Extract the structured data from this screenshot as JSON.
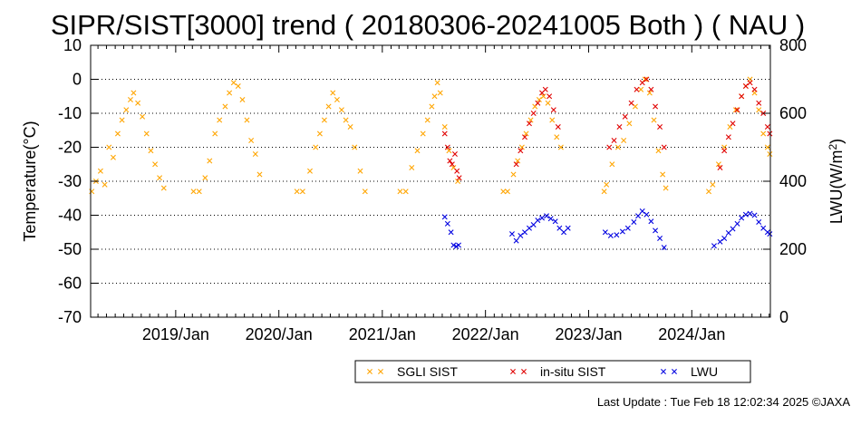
{
  "chart_data": {
    "type": "scatter",
    "title": "SIPR/SIST[3000] trend ( 20180306-20241005 Both ) ( NAU )",
    "ylabel": "Temperature(°C)",
    "y2label_main": "LWU(W/m",
    "y2label_sup": "2",
    "y2label_end": ")",
    "ylim": [
      -70,
      10
    ],
    "y2lim": [
      0,
      800
    ],
    "yticks": [
      10,
      0,
      -10,
      -20,
      -30,
      -40,
      -50,
      -60,
      -70
    ],
    "y2ticks": [
      800,
      600,
      400,
      200,
      0
    ],
    "xlim": [
      "2018-03-06",
      "2024-10-05"
    ],
    "xticklabels": [
      "2019/Jan",
      "2020/Jan",
      "2021/Jan",
      "2022/Jan",
      "2023/Jan",
      "2024/Jan"
    ],
    "grid": "horizontal dotted",
    "legend_position": "bottom",
    "series": [
      {
        "name": "SGLI SIST",
        "color": "#ffa500",
        "marker": "x",
        "axis": "left",
        "points": [
          [
            "2018-03-10",
            -33
          ],
          [
            "2018-03-25",
            -30
          ],
          [
            "2018-04-10",
            -27
          ],
          [
            "2018-04-25",
            -31
          ],
          [
            "2018-05-10",
            -20
          ],
          [
            "2018-05-25",
            -23
          ],
          [
            "2018-06-10",
            -16
          ],
          [
            "2018-06-25",
            -12
          ],
          [
            "2018-07-10",
            -9
          ],
          [
            "2018-07-25",
            -6
          ],
          [
            "2018-08-05",
            -4
          ],
          [
            "2018-08-20",
            -7
          ],
          [
            "2018-09-05",
            -11
          ],
          [
            "2018-09-20",
            -16
          ],
          [
            "2018-10-05",
            -21
          ],
          [
            "2018-10-20",
            -25
          ],
          [
            "2018-11-05",
            -29
          ],
          [
            "2018-11-20",
            -32
          ],
          [
            "2019-03-05",
            -33
          ],
          [
            "2019-03-25",
            -33
          ],
          [
            "2019-04-15",
            -29
          ],
          [
            "2019-05-01",
            -24
          ],
          [
            "2019-05-20",
            -16
          ],
          [
            "2019-06-05",
            -12
          ],
          [
            "2019-06-25",
            -8
          ],
          [
            "2019-07-10",
            -4
          ],
          [
            "2019-07-25",
            -1
          ],
          [
            "2019-08-10",
            -2
          ],
          [
            "2019-08-25",
            -6
          ],
          [
            "2019-09-10",
            -12
          ],
          [
            "2019-09-25",
            -18
          ],
          [
            "2019-10-10",
            -22
          ],
          [
            "2019-10-25",
            -28
          ],
          [
            "2020-03-05",
            -33
          ],
          [
            "2020-03-25",
            -33
          ],
          [
            "2020-04-20",
            -27
          ],
          [
            "2020-05-10",
            -20
          ],
          [
            "2020-05-25",
            -16
          ],
          [
            "2020-06-10",
            -12
          ],
          [
            "2020-06-25",
            -8
          ],
          [
            "2020-07-10",
            -4
          ],
          [
            "2020-07-25",
            -6
          ],
          [
            "2020-08-10",
            -9
          ],
          [
            "2020-08-25",
            -12
          ],
          [
            "2020-09-10",
            -14
          ],
          [
            "2020-09-25",
            -20
          ],
          [
            "2020-10-15",
            -27
          ],
          [
            "2020-11-01",
            -33
          ],
          [
            "2021-03-05",
            -33
          ],
          [
            "2021-03-25",
            -33
          ],
          [
            "2021-04-15",
            -26
          ],
          [
            "2021-05-05",
            -21
          ],
          [
            "2021-05-25",
            -16
          ],
          [
            "2021-06-10",
            -12
          ],
          [
            "2021-06-25",
            -8
          ],
          [
            "2021-07-05",
            -5
          ],
          [
            "2021-07-15",
            -1
          ],
          [
            "2021-07-25",
            -4
          ],
          [
            "2021-08-10",
            -14
          ],
          [
            "2021-08-25",
            -21
          ],
          [
            "2021-09-10",
            -26
          ],
          [
            "2021-09-25",
            -30
          ],
          [
            "2022-03-05",
            -33
          ],
          [
            "2022-03-20",
            -33
          ],
          [
            "2022-04-10",
            -28
          ],
          [
            "2022-04-25",
            -24
          ],
          [
            "2022-05-10",
            -20
          ],
          [
            "2022-05-25",
            -16
          ],
          [
            "2022-06-10",
            -12
          ],
          [
            "2022-06-25",
            -8
          ],
          [
            "2022-07-10",
            -6
          ],
          [
            "2022-07-25",
            -5
          ],
          [
            "2022-08-10",
            -7
          ],
          [
            "2022-08-25",
            -12
          ],
          [
            "2022-09-10",
            -17
          ],
          [
            "2022-09-25",
            -20
          ],
          [
            "2023-02-25",
            -33
          ],
          [
            "2023-03-05",
            -31
          ],
          [
            "2023-03-25",
            -25
          ],
          [
            "2023-04-15",
            -20
          ],
          [
            "2023-05-05",
            -18
          ],
          [
            "2023-05-25",
            -13
          ],
          [
            "2023-06-15",
            -8
          ],
          [
            "2023-07-05",
            -3
          ],
          [
            "2023-07-20",
            0
          ],
          [
            "2023-08-05",
            -4
          ],
          [
            "2023-08-20",
            -12
          ],
          [
            "2023-09-05",
            -21
          ],
          [
            "2023-09-20",
            -28
          ],
          [
            "2023-10-01",
            -32
          ],
          [
            "2024-03-01",
            -33
          ],
          [
            "2024-03-15",
            -31
          ],
          [
            "2024-04-05",
            -25
          ],
          [
            "2024-04-25",
            -20
          ],
          [
            "2024-05-15",
            -14
          ],
          [
            "2024-06-05",
            -9
          ],
          [
            "2024-06-25",
            -5
          ],
          [
            "2024-07-10",
            -2
          ],
          [
            "2024-07-25",
            0
          ],
          [
            "2024-08-10",
            -4
          ],
          [
            "2024-08-25",
            -9
          ],
          [
            "2024-09-10",
            -16
          ],
          [
            "2024-09-25",
            -20
          ],
          [
            "2024-10-03",
            -22
          ]
        ]
      },
      {
        "name": "in-situ SIST",
        "color": "#e00000",
        "marker": "x",
        "axis": "left",
        "points": [
          [
            "2021-08-10",
            -16
          ],
          [
            "2021-08-20",
            -20
          ],
          [
            "2021-08-28",
            -24
          ],
          [
            "2021-09-05",
            -25
          ],
          [
            "2021-09-15",
            -22
          ],
          [
            "2021-09-22",
            -27
          ],
          [
            "2021-09-30",
            -29
          ],
          [
            "2022-04-20",
            -25
          ],
          [
            "2022-05-05",
            -21
          ],
          [
            "2022-05-20",
            -17
          ],
          [
            "2022-06-05",
            -13
          ],
          [
            "2022-06-20",
            -10
          ],
          [
            "2022-07-05",
            -7
          ],
          [
            "2022-07-20",
            -4
          ],
          [
            "2022-08-01",
            -3
          ],
          [
            "2022-08-15",
            -5
          ],
          [
            "2022-08-30",
            -9
          ],
          [
            "2022-09-15",
            -14
          ],
          [
            "2023-03-15",
            -20
          ],
          [
            "2023-04-01",
            -18
          ],
          [
            "2023-04-20",
            -14
          ],
          [
            "2023-05-10",
            -11
          ],
          [
            "2023-06-01",
            -7
          ],
          [
            "2023-06-20",
            -3
          ],
          [
            "2023-07-10",
            -1
          ],
          [
            "2023-07-25",
            0
          ],
          [
            "2023-08-10",
            -3
          ],
          [
            "2023-08-25",
            -8
          ],
          [
            "2023-09-10",
            -14
          ],
          [
            "2023-09-25",
            -20
          ],
          [
            "2024-04-10",
            -26
          ],
          [
            "2024-04-25",
            -21
          ],
          [
            "2024-05-10",
            -17
          ],
          [
            "2024-05-25",
            -13
          ],
          [
            "2024-06-10",
            -9
          ],
          [
            "2024-06-25",
            -5
          ],
          [
            "2024-07-10",
            -2
          ],
          [
            "2024-07-25",
            -1
          ],
          [
            "2024-08-10",
            -3
          ],
          [
            "2024-08-25",
            -7
          ],
          [
            "2024-09-10",
            -10
          ],
          [
            "2024-09-25",
            -14
          ],
          [
            "2024-10-03",
            -16
          ]
        ]
      },
      {
        "name": "LWU",
        "color": "#0000e0",
        "marker": "x",
        "axis": "right",
        "points": [
          [
            "2021-08-10",
            295
          ],
          [
            "2021-08-20",
            275
          ],
          [
            "2021-09-01",
            250
          ],
          [
            "2021-09-10",
            212
          ],
          [
            "2021-09-20",
            208
          ],
          [
            "2021-09-28",
            212
          ],
          [
            "2022-04-05",
            245
          ],
          [
            "2022-04-20",
            225
          ],
          [
            "2022-05-05",
            240
          ],
          [
            "2022-05-20",
            250
          ],
          [
            "2022-06-05",
            262
          ],
          [
            "2022-06-20",
            272
          ],
          [
            "2022-07-05",
            285
          ],
          [
            "2022-07-20",
            292
          ],
          [
            "2022-08-05",
            298
          ],
          [
            "2022-08-20",
            290
          ],
          [
            "2022-09-05",
            282
          ],
          [
            "2022-09-20",
            262
          ],
          [
            "2022-10-05",
            250
          ],
          [
            "2022-10-20",
            262
          ],
          [
            "2023-03-01",
            250
          ],
          [
            "2023-03-20",
            240
          ],
          [
            "2023-04-10",
            242
          ],
          [
            "2023-05-01",
            252
          ],
          [
            "2023-05-20",
            262
          ],
          [
            "2023-06-10",
            280
          ],
          [
            "2023-06-25",
            298
          ],
          [
            "2023-07-10",
            312
          ],
          [
            "2023-07-25",
            302
          ],
          [
            "2023-08-10",
            282
          ],
          [
            "2023-08-25",
            255
          ],
          [
            "2023-09-10",
            232
          ],
          [
            "2023-09-25",
            205
          ],
          [
            "2024-03-20",
            210
          ],
          [
            "2024-04-10",
            222
          ],
          [
            "2024-04-25",
            232
          ],
          [
            "2024-05-10",
            248
          ],
          [
            "2024-05-25",
            260
          ],
          [
            "2024-06-10",
            275
          ],
          [
            "2024-06-25",
            292
          ],
          [
            "2024-07-10",
            302
          ],
          [
            "2024-07-25",
            305
          ],
          [
            "2024-08-10",
            300
          ],
          [
            "2024-08-25",
            280
          ],
          [
            "2024-09-10",
            262
          ],
          [
            "2024-09-25",
            250
          ],
          [
            "2024-10-03",
            245
          ]
        ]
      }
    ]
  },
  "footer": {
    "last_update": "Last Update : Tue Feb 18 12:02:34 2025  ©JAXA"
  }
}
